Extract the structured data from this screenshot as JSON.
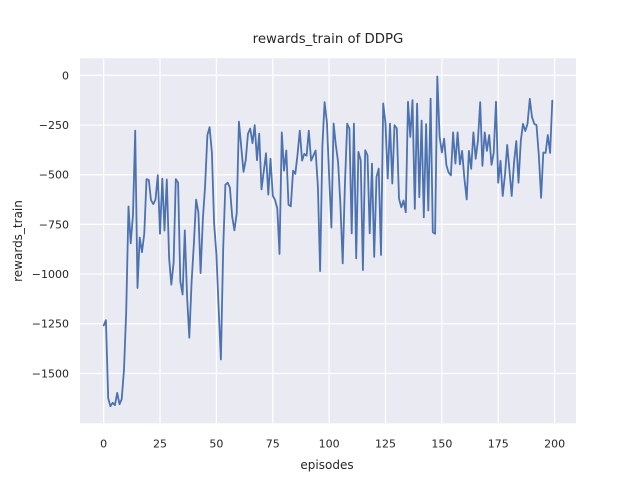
{
  "chart_data": {
    "type": "line",
    "title": "rewards_train of DDPG",
    "xlabel": "episodes",
    "ylabel": "rewards_train",
    "x_start": 0,
    "x_step": 1,
    "xlim": [
      -10.5,
      209.5
    ],
    "ylim": [
      -1751,
      86
    ],
    "xticks": [
      0,
      25,
      50,
      75,
      100,
      125,
      150,
      175,
      200
    ],
    "xtick_labels": [
      "0",
      "25",
      "50",
      "75",
      "100",
      "125",
      "150",
      "175",
      "200"
    ],
    "yticks": [
      0,
      -250,
      -500,
      -750,
      -1000,
      -1250,
      -1500
    ],
    "ytick_labels": [
      "0",
      "−250",
      "−500",
      "−750",
      "−1000",
      "−1250",
      "−1500"
    ],
    "grid": true,
    "legend": "none",
    "style": {
      "line_color": "#4c72b0",
      "axes_background": "#eaeaf2",
      "grid_color": "#ffffff",
      "text_color": "#262626",
      "figure_background": "#ffffff"
    },
    "values": [
      -1259,
      -1232,
      -1625,
      -1665,
      -1648,
      -1660,
      -1598,
      -1655,
      -1630,
      -1480,
      -1190,
      -660,
      -845,
      -700,
      -278,
      -1070,
      -816,
      -890,
      -795,
      -522,
      -527,
      -628,
      -648,
      -625,
      -502,
      -797,
      -520,
      -781,
      -524,
      -918,
      -1053,
      -943,
      -522,
      -540,
      -1036,
      -1103,
      -780,
      -1116,
      -1320,
      -1040,
      -845,
      -625,
      -690,
      -995,
      -720,
      -556,
      -300,
      -261,
      -390,
      -745,
      -900,
      -1180,
      -1430,
      -870,
      -550,
      -540,
      -565,
      -711,
      -780,
      -695,
      -233,
      -358,
      -485,
      -427,
      -293,
      -268,
      -341,
      -250,
      -427,
      -293,
      -574,
      -485,
      -392,
      -600,
      -420,
      -606,
      -626,
      -670,
      -899,
      -287,
      -479,
      -378,
      -651,
      -659,
      -479,
      -496,
      -395,
      -278,
      -429,
      -395,
      -404,
      -278,
      -429,
      -404,
      -378,
      -560,
      -985,
      -353,
      -135,
      -236,
      -500,
      -766,
      -242,
      -353,
      -437,
      -651,
      -946,
      -553,
      -243,
      -268,
      -795,
      -243,
      -921,
      -385,
      -427,
      -980,
      -377,
      -402,
      -795,
      -444,
      -913,
      -511,
      -469,
      -904,
      -141,
      -243,
      -519,
      -243,
      -544,
      -251,
      -267,
      -620,
      -664,
      -630,
      -689,
      -133,
      -309,
      -125,
      -672,
      -142,
      -613,
      -228,
      -714,
      -245,
      -680,
      -117,
      -789,
      -797,
      -5,
      -309,
      -388,
      -318,
      -452,
      -489,
      -503,
      -287,
      -444,
      -287,
      -448,
      -380,
      -520,
      -624,
      -380,
      -470,
      -287,
      -420,
      -330,
      -135,
      -455,
      -287,
      -380,
      -300,
      -450,
      -390,
      -133,
      -540,
      -430,
      -607,
      -500,
      -350,
      -480,
      -607,
      -440,
      -330,
      -540,
      -330,
      -244,
      -280,
      -244,
      -118,
      -210,
      -244,
      -250,
      -400,
      -616,
      -388,
      -390,
      -300,
      -390,
      -127
    ]
  }
}
